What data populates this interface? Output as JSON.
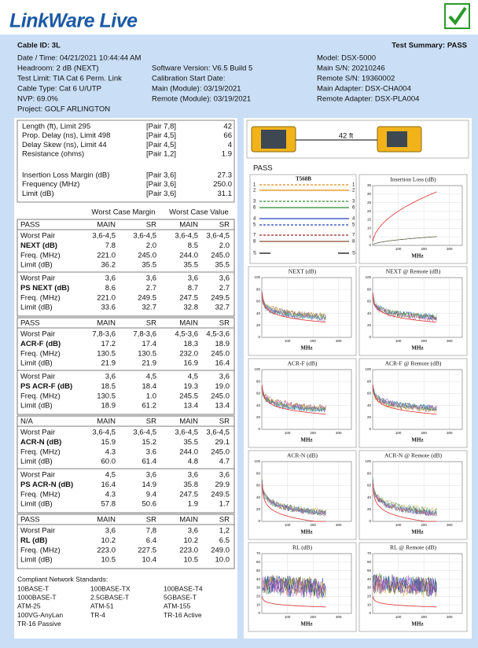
{
  "header": {
    "logo": "LinkWare Live"
  },
  "info": {
    "cable_id": "Cable ID: 3L",
    "test_summary": "Test Summary: PASS",
    "col1": [
      "Date / Time: 04/21/2021 10:44:44 AM",
      "Headroom: 2 dB (NEXT)",
      "Test Limit: TIA Cat 6 Perm. Link",
      "Cable Type: Cat 6 U/UTP",
      "NVP: 69.0%",
      "Project: GOLF ARLINGTON"
    ],
    "col2": [
      "Software Version: V6.5 Build 5",
      "Calibration Start Date:",
      "Main (Module): 03/19/2021",
      "Remote (Module): 03/19/2021"
    ],
    "col3": [
      "Model: DSX-5000",
      "Main S/N: 20210246",
      "Remote S/N: 19360002",
      "Main Adapter: DSX-CHA004",
      "Remote Adapter: DSX-PLA004"
    ]
  },
  "summary": {
    "rows": [
      [
        "Length (ft), Limit 295",
        "[Pair 7,8]",
        "42"
      ],
      [
        "Prop. Delay (ns), Limit 498",
        "[Pair 4,5]",
        "66"
      ],
      [
        "Delay Skew (ns), Limit 44",
        "[Pair 4,5]",
        "4"
      ],
      [
        "Resistance (ohms)",
        "[Pair 1,2]",
        "1.9"
      ]
    ],
    "loss_rows": [
      [
        "Insertion Loss Margin (dB)",
        "[Pair 3,6]",
        "27.3"
      ],
      [
        "Frequency (MHz)",
        "[Pair 3,6]",
        "250.0"
      ],
      [
        "Limit (dB)",
        "[Pair 3,6]",
        "31.1"
      ]
    ]
  },
  "results": {
    "margin_header": "Worst Case Margin",
    "value_header": "Worst Case Value",
    "sections": [
      {
        "header": [
          "PASS",
          "MAIN",
          "SR",
          "MAIN",
          "SR"
        ],
        "groups": [
          [
            [
              "Worst Pair",
              "3,6-4,5",
              "3,6-4,5",
              "3,6-4,5",
              "3,6-4,5"
            ],
            [
              "NEXT (dB)",
              "7.8",
              "2.0",
              "8.5",
              "2.0"
            ],
            [
              "Freq. (MHz)",
              "221.0",
              "245.0",
              "244.0",
              "245.0"
            ],
            [
              "Limit (dB)",
              "36.2",
              "35.5",
              "35.5",
              "35.5"
            ]
          ],
          [
            [
              "Worst Pair",
              "3,6",
              "3,6",
              "3,6",
              "3,6"
            ],
            [
              "PS NEXT (dB)",
              "8.6",
              "2.7",
              "8.7",
              "2.7"
            ],
            [
              "Freq. (MHz)",
              "221.0",
              "249.5",
              "247.5",
              "249.5"
            ],
            [
              "Limit (dB)",
              "33.6",
              "32.7",
              "32.8",
              "32.7"
            ]
          ]
        ]
      },
      {
        "header": [
          "PASS",
          "MAIN",
          "SR",
          "MAIN",
          "SR"
        ],
        "groups": [
          [
            [
              "Worst Pair",
              "7,8-3,6",
              "7,8-3,6",
              "4,5-3,6",
              "4,5-3,6"
            ],
            [
              "ACR-F (dB)",
              "17.2",
              "17.4",
              "18.3",
              "18.9"
            ],
            [
              "Freq. (MHz)",
              "130.5",
              "130.5",
              "232.0",
              "245.0"
            ],
            [
              "Limit (dB)",
              "21.9",
              "21.9",
              "16.9",
              "16.4"
            ]
          ],
          [
            [
              "Worst Pair",
              "3,6",
              "4,5",
              "4,5",
              "3,6"
            ],
            [
              "PS ACR-F (dB)",
              "18.5",
              "18.4",
              "19.3",
              "19.0"
            ],
            [
              "Freq. (MHz)",
              "130.5",
              "1.0",
              "245.5",
              "245.0"
            ],
            [
              "Limit (dB)",
              "18.9",
              "61.2",
              "13.4",
              "13.4"
            ]
          ]
        ]
      },
      {
        "header": [
          "N/A",
          "MAIN",
          "SR",
          "MAIN",
          "SR"
        ],
        "groups": [
          [
            [
              "Worst Pair",
              "3,6-4,5",
              "3,6-4,5",
              "3,6-4,5",
              "3,6-4,5"
            ],
            [
              "ACR-N (dB)",
              "15.9",
              "15.2",
              "35.5",
              "29.1"
            ],
            [
              "Freq. (MHz)",
              "4.3",
              "3.6",
              "244.0",
              "245.0"
            ],
            [
              "Limit (dB)",
              "60.0",
              "61.4",
              "4.8",
              "4.7"
            ]
          ],
          [
            [
              "Worst Pair",
              "4,5",
              "3,6",
              "3,6",
              "3,6"
            ],
            [
              "PS ACR-N (dB)",
              "16.4",
              "14.9",
              "35.8",
              "29.9"
            ],
            [
              "Freq. (MHz)",
              "4.3",
              "9.4",
              "247.5",
              "249.5"
            ],
            [
              "Limit (dB)",
              "57.8",
              "50.6",
              "1.9",
              "1.7"
            ]
          ]
        ]
      },
      {
        "header": [
          "PASS",
          "MAIN",
          "SR",
          "MAIN",
          "SR"
        ],
        "groups": [
          [
            [
              "Worst Pair",
              "3,6",
              "7,8",
              "3,6",
              "1,2"
            ],
            [
              "RL (dB)",
              "10.2",
              "6.4",
              "10.2",
              "6.5"
            ],
            [
              "Freq. (MHz)",
              "223.0",
              "227.5",
              "223.0",
              "249.0"
            ],
            [
              "Limit (dB)",
              "10.5",
              "10.4",
              "10.5",
              "10.0"
            ]
          ]
        ]
      }
    ]
  },
  "standards": {
    "title": "Compliant Network Standards:",
    "items": [
      "10BASE-T",
      "100BASE-TX",
      "100BASE-T4",
      "1000BASE-T",
      "2.5GBASE-T",
      "5GBASE-T",
      "ATM-25",
      "ATM-51",
      "ATM-155",
      "100VG-AnyLan",
      "TR-4",
      "TR-16 Active",
      "TR-16 Passive"
    ]
  },
  "length_diagram": {
    "length": "42 ft"
  },
  "wiremap": {
    "status": "PASS",
    "title": "T568B",
    "pins_left": [
      "1",
      "2",
      "3",
      "6",
      "4",
      "5",
      "7",
      "8",
      "S"
    ],
    "pins_right": [
      "1",
      "2",
      "3",
      "6",
      "4",
      "5",
      "7",
      "8",
      "S"
    ]
  },
  "plots": [
    {
      "title": "Insertion Loss (dB)",
      "ylim": [
        0,
        35
      ],
      "yticks": [
        0,
        5,
        10,
        15,
        20,
        25,
        30,
        35
      ],
      "xlim": [
        0,
        350
      ],
      "xticks": [
        100,
        200,
        300
      ],
      "xlabel": "MHz"
    },
    {
      "title": "NEXT (dB)",
      "ylim": [
        0,
        100
      ],
      "yticks": [
        0,
        20,
        40,
        60,
        80,
        100
      ],
      "xlim": [
        0,
        350
      ],
      "xticks": [
        100,
        200,
        300
      ],
      "xlabel": "MHz"
    },
    {
      "title": "NEXT @ Remote (dB)",
      "ylim": [
        0,
        100
      ],
      "yticks": [
        0,
        20,
        40,
        60,
        80,
        100
      ],
      "xlim": [
        0,
        350
      ],
      "xticks": [
        100,
        200,
        300
      ],
      "xlabel": "MHz"
    },
    {
      "title": "ACR-F (dB)",
      "ylim": [
        0,
        100
      ],
      "yticks": [
        0,
        20,
        40,
        60,
        80,
        100
      ],
      "xlim": [
        0,
        350
      ],
      "xticks": [
        100,
        200,
        300
      ],
      "xlabel": "MHz"
    },
    {
      "title": "ACR-F @ Remote (dB)",
      "ylim": [
        0,
        100
      ],
      "yticks": [
        0,
        20,
        40,
        60,
        80,
        100
      ],
      "xlim": [
        0,
        350
      ],
      "xticks": [
        100,
        200,
        300
      ],
      "xlabel": "MHz"
    },
    {
      "title": "ACR-N (dB)",
      "ylim": [
        0,
        100
      ],
      "yticks": [
        0,
        20,
        40,
        60,
        80,
        100
      ],
      "xlim": [
        0,
        350
      ],
      "xticks": [
        100,
        200,
        300
      ],
      "xlabel": "MHz"
    },
    {
      "title": "ACR-N @ Remote (dB)",
      "ylim": [
        0,
        100
      ],
      "yticks": [
        0,
        20,
        40,
        60,
        80,
        100
      ],
      "xlim": [
        0,
        350
      ],
      "xticks": [
        100,
        200,
        300
      ],
      "xlabel": "MHz"
    },
    {
      "title": "RL (dB)",
      "ylim": [
        0,
        70
      ],
      "yticks": [
        0,
        10,
        20,
        30,
        40,
        50,
        60,
        70
      ],
      "xlim": [
        0,
        350
      ],
      "xticks": [
        100,
        200,
        300
      ],
      "xlabel": "MHz"
    },
    {
      "title": "RL @ Remote (dB)",
      "ylim": [
        0,
        70
      ],
      "yticks": [
        0,
        10,
        20,
        30,
        40,
        50,
        60,
        70
      ],
      "xlim": [
        0,
        350
      ],
      "xticks": [
        100,
        200,
        300
      ],
      "xlabel": "MHz"
    }
  ]
}
